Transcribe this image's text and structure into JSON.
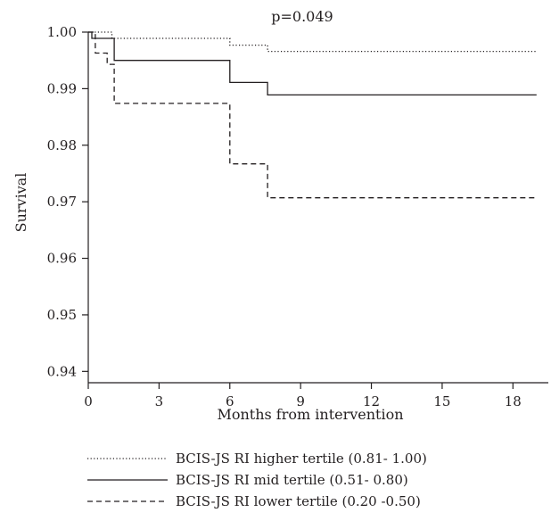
{
  "chart_data": {
    "type": "line",
    "title": "",
    "annotation": "p=0.049",
    "xlabel": "Months from intervention",
    "ylabel": "Survival",
    "xlim": [
      0,
      19.5
    ],
    "ylim": [
      0.938,
      1.0
    ],
    "xticks": [
      0,
      3,
      6,
      9,
      12,
      15,
      18
    ],
    "xtick_labels": [
      "0",
      "3",
      "6",
      "9",
      "12",
      "15",
      "18"
    ],
    "yticks": [
      1.0,
      0.99,
      0.98,
      0.97,
      0.96,
      0.95,
      0.94
    ],
    "ytick_labels": [
      "1.00",
      "0.99",
      "0.98",
      "0.97",
      "0.96",
      "0.95",
      "0.94"
    ],
    "grid": false,
    "legend_position": "bottom",
    "series": [
      {
        "name": "BCIS-JS RI higher tertile (0.81- 1.00)",
        "style": "dotted",
        "color": "#231f20",
        "x": [
          0,
          0.15,
          0.15,
          1.0,
          1.0,
          6.0,
          6.0,
          7.6,
          7.6,
          19.0
        ],
        "y": [
          1.0,
          1.0,
          1.0,
          1.0,
          0.9989,
          0.9989,
          0.9977,
          0.9977,
          0.9966,
          0.9966
        ]
      },
      {
        "name": "BCIS-JS RI mid tertile (0.51- 0.80)",
        "style": "solid",
        "color": "#231f20",
        "x": [
          0,
          0.15,
          0.15,
          1.1,
          1.1,
          6.0,
          6.0,
          7.6,
          7.6,
          19.0
        ],
        "y": [
          1.0,
          1.0,
          0.9989,
          0.9989,
          0.995,
          0.995,
          0.9911,
          0.9911,
          0.9889,
          0.9889
        ]
      },
      {
        "name": "BCIS-JS RI lower tertile (0.20 -0.50)",
        "style": "dashed",
        "color": "#231f20",
        "x": [
          0,
          0.3,
          0.3,
          0.8,
          0.8,
          1.1,
          1.1,
          6.0,
          6.0,
          7.6,
          7.6,
          19.0
        ],
        "y": [
          1.0,
          1.0,
          0.9963,
          0.9963,
          0.9943,
          0.9943,
          0.9874,
          0.9874,
          0.9767,
          0.9767,
          0.9707,
          0.9707
        ]
      }
    ]
  }
}
